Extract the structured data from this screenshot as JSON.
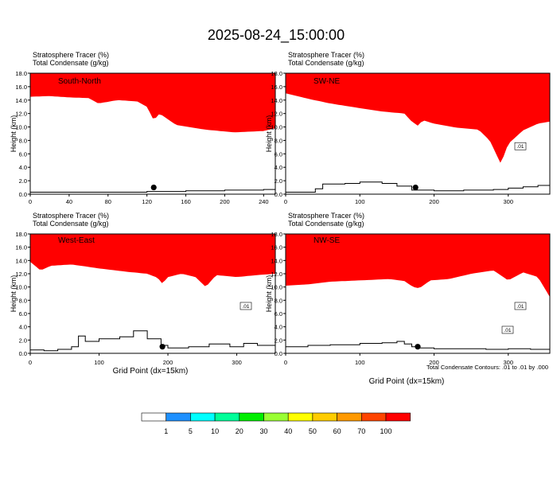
{
  "figure": {
    "title": "2025-08-24_15:00:00",
    "xlabel": "Grid Point (dx=15km)",
    "footnote": "Total Condensate Contours: .01 to .01 by .000"
  },
  "colorbar": {
    "labels": [
      "1",
      "5",
      "10",
      "20",
      "30",
      "40",
      "50",
      "60",
      "70",
      "100"
    ],
    "colors": [
      "#ffffff",
      "#1e90ff",
      "#00ffff",
      "#00ff99",
      "#00ee00",
      "#99ff33",
      "#ffff00",
      "#ffcc00",
      "#ff9900",
      "#ff4400",
      "#ff0000"
    ]
  },
  "chart_data": [
    {
      "type": "heatmap",
      "panel": "South-North",
      "header": [
        "Stratosphere Tracer   (%)",
        "Total Condensate   (g/kg)"
      ],
      "ylabel": "Height (km)",
      "xlim": [
        0,
        252
      ],
      "ylim": [
        0,
        18
      ],
      "xticks": [
        "0",
        "40",
        "80",
        "120",
        "160",
        "200",
        "240"
      ],
      "yticks": [
        "0.0",
        "2.0",
        "4.0",
        "6.0",
        "8.0",
        "10.0",
        "12.0",
        "14.0",
        "16.0",
        "18.0"
      ],
      "contour_labels": [],
      "marker": {
        "x": 127,
        "y": 1.0
      },
      "tracer_base_km": {
        "x": [
          0,
          20,
          40,
          60,
          70,
          90,
          110,
          120,
          127,
          133,
          150,
          180,
          210,
          240,
          252
        ],
        "y": [
          14.5,
          14.6,
          14.4,
          14.3,
          13.5,
          14.0,
          13.8,
          13.0,
          11.0,
          12.0,
          10.3,
          9.6,
          9.2,
          9.4,
          9.8
        ]
      },
      "terrain_km": {
        "x": [
          0,
          60,
          120,
          140,
          160,
          200,
          230,
          240,
          252
        ],
        "y": [
          0.3,
          0.3,
          0.4,
          0.4,
          0.5,
          0.6,
          0.6,
          0.7,
          0.7
        ]
      }
    },
    {
      "type": "heatmap",
      "panel": "SW-NE",
      "header": [
        "Stratosphere Tracer   (%)",
        "Total Condensate   (g/kg)"
      ],
      "ylabel": "Height (km)",
      "xlim": [
        0,
        356
      ],
      "ylim": [
        0,
        18
      ],
      "xticks": [
        "0",
        "100",
        "200",
        "300"
      ],
      "yticks": [
        "0.0",
        "2.0",
        "4.0",
        "6.0",
        "8.0",
        "10.0",
        "12.0",
        "14.0",
        "16.0",
        "18.0"
      ],
      "contour_labels": [
        ".01"
      ],
      "marker": {
        "x": 175,
        "y": 1.0
      },
      "tracer_base_km": {
        "x": [
          0,
          30,
          60,
          100,
          130,
          160,
          170,
          178,
          185,
          200,
          230,
          260,
          275,
          290,
          300,
          320,
          340,
          356
        ],
        "y": [
          15.0,
          14.2,
          13.5,
          12.8,
          12.3,
          12.0,
          10.8,
          10.2,
          11.0,
          10.5,
          9.9,
          9.6,
          8.0,
          4.5,
          7.5,
          9.5,
          10.5,
          10.8
        ]
      },
      "terrain_km": {
        "x": [
          0,
          40,
          50,
          80,
          100,
          130,
          150,
          170,
          200,
          240,
          280,
          300,
          320,
          340,
          356
        ],
        "y": [
          0.3,
          0.8,
          1.5,
          1.6,
          1.8,
          1.6,
          1.2,
          0.6,
          0.5,
          0.6,
          0.7,
          0.9,
          1.1,
          1.3,
          1.2
        ]
      }
    },
    {
      "type": "heatmap",
      "panel": "West-East",
      "header": [
        "Stratosphere Tracer   (%)",
        "Total Condensate   (g/kg)"
      ],
      "ylabel": "Height (km)",
      "xlim": [
        0,
        356
      ],
      "ylim": [
        0,
        18
      ],
      "xticks": [
        "0",
        "100",
        "200",
        "300"
      ],
      "yticks": [
        "0.0",
        "2.0",
        "4.0",
        "6.0",
        "8.0",
        "10.0",
        "12.0",
        "14.0",
        "16.0",
        "18.0"
      ],
      "contour_labels": [
        ".01"
      ],
      "marker": {
        "x": 192,
        "y": 1.0
      },
      "tracer_base_km": {
        "x": [
          0,
          15,
          30,
          60,
          100,
          140,
          170,
          185,
          192,
          200,
          220,
          240,
          255,
          270,
          300,
          330,
          356
        ],
        "y": [
          13.8,
          12.5,
          13.2,
          13.4,
          12.8,
          12.3,
          12.0,
          11.4,
          10.5,
          11.5,
          12.0,
          11.5,
          10.0,
          11.8,
          11.5,
          11.8,
          12.0
        ]
      },
      "terrain_km": {
        "x": [
          0,
          20,
          40,
          60,
          70,
          80,
          100,
          130,
          150,
          170,
          190,
          200,
          230,
          260,
          290,
          310,
          330,
          356
        ],
        "y": [
          0.5,
          0.4,
          0.6,
          1.0,
          2.6,
          1.8,
          2.2,
          2.5,
          3.4,
          2.2,
          1.2,
          0.8,
          1.0,
          1.4,
          1.0,
          1.5,
          1.2,
          1.0
        ]
      }
    },
    {
      "type": "heatmap",
      "panel": "NW-SE",
      "header": [
        "Stratosphere Tracer   (%)",
        "Total Condensate   (g/kg)"
      ],
      "ylabel": "Height (km)",
      "xlim": [
        0,
        356
      ],
      "ylim": [
        0,
        18
      ],
      "xticks": [
        "0",
        "100",
        "200",
        "300"
      ],
      "yticks": [
        "0.0",
        "2.0",
        "4.0",
        "6.0",
        "8.0",
        "10.0",
        "12.0",
        "14.0",
        "16.0",
        "18.0"
      ],
      "contour_labels": [
        ".01",
        ".01"
      ],
      "marker": {
        "x": 178,
        "y": 1.0
      },
      "tracer_base_km": {
        "x": [
          0,
          30,
          60,
          100,
          140,
          160,
          172,
          180,
          195,
          220,
          250,
          280,
          300,
          320,
          340,
          356
        ],
        "y": [
          10.2,
          10.4,
          10.8,
          11.0,
          11.2,
          10.9,
          10.0,
          9.8,
          11.0,
          11.2,
          12.0,
          12.5,
          11.0,
          12.2,
          11.5,
          8.5
        ]
      },
      "terrain_km": {
        "x": [
          0,
          30,
          60,
          100,
          130,
          150,
          160,
          170,
          180,
          200,
          240,
          270,
          300,
          330,
          356
        ],
        "y": [
          1.0,
          1.2,
          1.3,
          1.5,
          1.6,
          1.8,
          1.4,
          1.0,
          0.8,
          0.7,
          0.7,
          0.6,
          0.7,
          0.6,
          0.5
        ]
      }
    }
  ]
}
